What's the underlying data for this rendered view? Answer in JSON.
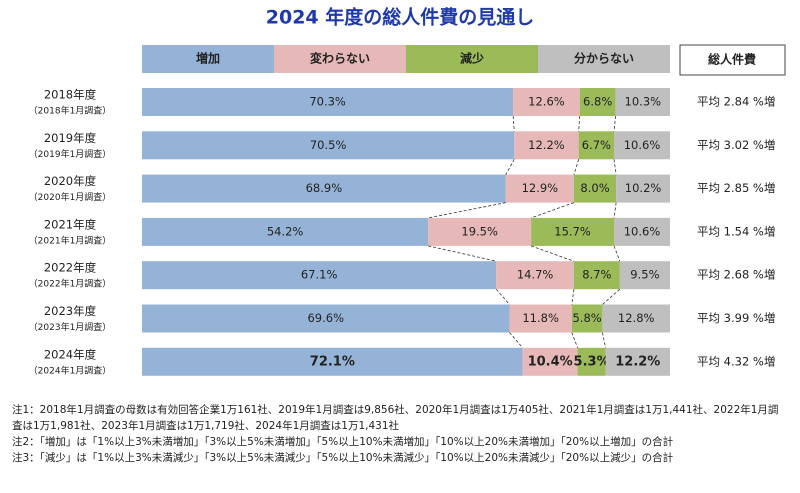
{
  "chart_data": {
    "type": "stacked-bar-horizontal",
    "title": "2024 年度の総人件費の見通し",
    "categories": [
      "2018年度",
      "2019年度",
      "2020年度",
      "2021年度",
      "2022年度",
      "2023年度",
      "2024年度"
    ],
    "category_notes": [
      "（2018年1月調査）",
      "（2019年1月調査）",
      "（2020年1月調査）",
      "（2021年1月調査）",
      "（2022年1月調査）",
      "（2023年1月調査）",
      "（2024年1月調査）"
    ],
    "xlim": [
      0,
      100
    ],
    "series": [
      {
        "name": "増加",
        "color": "#95b3d7",
        "values": [
          70.3,
          70.5,
          68.9,
          54.2,
          67.1,
          69.6,
          72.1
        ],
        "value_labels": [
          "70.3%",
          "70.5%",
          "68.9%",
          "54.2%",
          "67.1%",
          "69.6%",
          "72.1%"
        ]
      },
      {
        "name": "変わらない",
        "color": "#e6b9b8",
        "values": [
          12.6,
          12.2,
          12.9,
          19.5,
          14.7,
          11.8,
          10.4
        ],
        "value_labels": [
          "12.6%",
          "12.2%",
          "12.9%",
          "19.5%",
          "14.7%",
          "11.8%",
          "10.4%"
        ]
      },
      {
        "name": "減少",
        "color": "#9bbb59",
        "values": [
          6.8,
          6.7,
          8.0,
          15.7,
          8.7,
          5.8,
          5.3
        ],
        "value_labels": [
          "6.8%",
          "6.7%",
          "8.0%",
          "15.7%",
          "8.7%",
          "5.8%",
          "5.3%"
        ]
      },
      {
        "name": "分からない",
        "color": "#bfbfbf",
        "values": [
          10.3,
          10.6,
          10.2,
          10.6,
          9.5,
          12.8,
          12.2
        ],
        "value_labels": [
          "10.3%",
          "10.6%",
          "10.2%",
          "10.6%",
          "9.5%",
          "12.8%",
          "12.2%"
        ]
      }
    ],
    "bold_last_row": true,
    "side_column": {
      "header": "総人件費",
      "values": [
        "平均 2.84 %増",
        "平均 3.02 %増",
        "平均 2.85 %増",
        "平均 1.54 %増",
        "平均 2.68 %増",
        "平均 3.99 %増",
        "平均 4.32 %増"
      ]
    },
    "notes": [
      "注1：2018年1月調査の母数は有効回答企業1万161社、2019年1月調査は9,856社、2020年1月調査は1万405社、2021年1月調査は1万1,441社、2022年1月調査は1万1,981社、2023年1月調査は1万1,719社、2024年1月調査は1万1,431社",
      "注2：「増加」は「1%以上3%未満増加」「3%以上5%未満増加」「5%以上10%未満増加」「10%以上20%未満増加」「20%以上増加」の合計",
      "注3：「減少」は「1%以上3%未満減少」「3%以上5%未満減少」「5%以上10%未満減少」「10%以上20%未満減少」「20%以上減少」の合計"
    ]
  }
}
